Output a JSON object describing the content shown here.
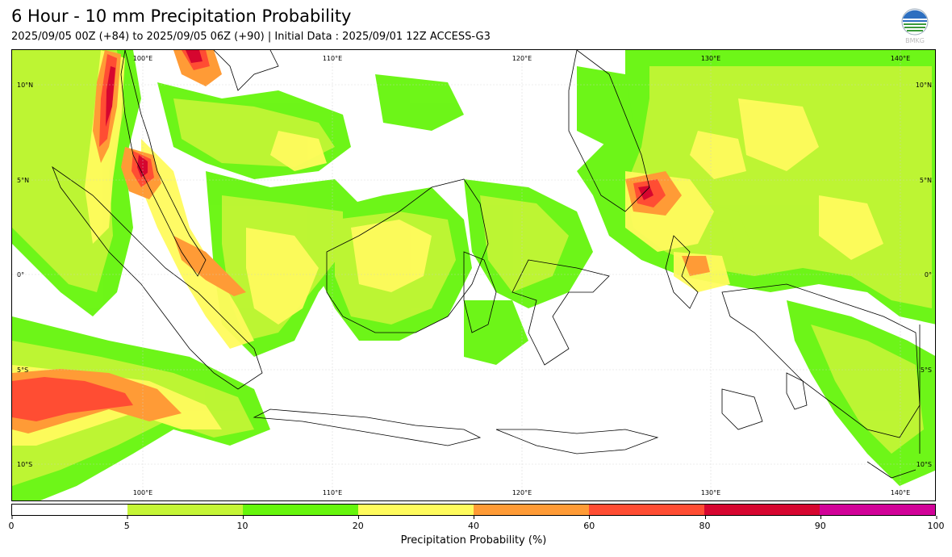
{
  "header": {
    "title": "6 Hour - 10 mm Precipitation Probability",
    "subtitle": "2025/09/05 00Z (+84) to 2025/09/05 06Z (+90) | Initial Data : 2025/09/01 12Z ACCESS-G3",
    "logo_text": "BMKG",
    "logo_icon": "bmkg-logo-icon"
  },
  "map": {
    "lon_labels": [
      "100°E",
      "110°E",
      "120°E",
      "130°E",
      "140°E"
    ],
    "lat_labels": [
      "10°N",
      "5°N",
      "0°",
      "5°S",
      "10°S"
    ],
    "extent": {
      "lon_min": 93,
      "lon_max": 141.8,
      "lat_min": -11.7,
      "lat_max": 11.8
    },
    "gridlines": true
  },
  "colorbar": {
    "label": "Precipitation Probability (%)",
    "ticks": [
      "0",
      "5",
      "10",
      "20",
      "40",
      "60",
      "80",
      "90",
      "100"
    ],
    "colors": [
      "#ffffff",
      "#c5f536",
      "#66f50c",
      "#fffb5d",
      "#ff9b36",
      "#ff4d33",
      "#d6062f",
      "#d10198"
    ]
  }
}
